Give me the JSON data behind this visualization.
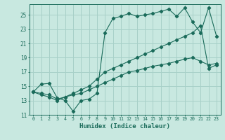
{
  "xlabel": "Humidex (Indice chaleur)",
  "bg_color": "#c8e8e0",
  "grid_color": "#a8d0c8",
  "line_color": "#1a6b5a",
  "xlim": [
    -0.5,
    23.5
  ],
  "ylim": [
    11,
    26.5
  ],
  "xticks": [
    0,
    1,
    2,
    3,
    4,
    5,
    6,
    7,
    8,
    9,
    10,
    11,
    12,
    13,
    14,
    15,
    16,
    17,
    18,
    19,
    20,
    21,
    22,
    23
  ],
  "yticks": [
    11,
    13,
    15,
    17,
    19,
    21,
    23,
    25
  ],
  "series1": [
    14.2,
    15.3,
    15.4,
    13.4,
    13.0,
    11.5,
    13.0,
    13.2,
    14.0,
    22.5,
    24.5,
    24.8,
    25.2,
    24.8,
    25.0,
    25.2,
    25.5,
    25.8,
    24.8,
    26.0,
    24.0,
    22.5,
    26.0,
    22.0
  ],
  "series2": [
    14.2,
    14.0,
    13.8,
    13.2,
    13.5,
    14.0,
    14.5,
    15.0,
    16.0,
    17.0,
    17.5,
    18.0,
    18.5,
    19.0,
    19.5,
    20.0,
    20.5,
    21.0,
    21.5,
    22.0,
    22.5,
    23.5,
    17.5,
    18.0
  ],
  "series3": [
    14.2,
    13.8,
    13.5,
    13.0,
    13.5,
    13.8,
    14.0,
    14.5,
    15.0,
    15.5,
    16.0,
    16.5,
    17.0,
    17.2,
    17.5,
    17.8,
    18.0,
    18.2,
    18.5,
    18.8,
    19.0,
    18.5,
    18.0,
    18.2
  ]
}
